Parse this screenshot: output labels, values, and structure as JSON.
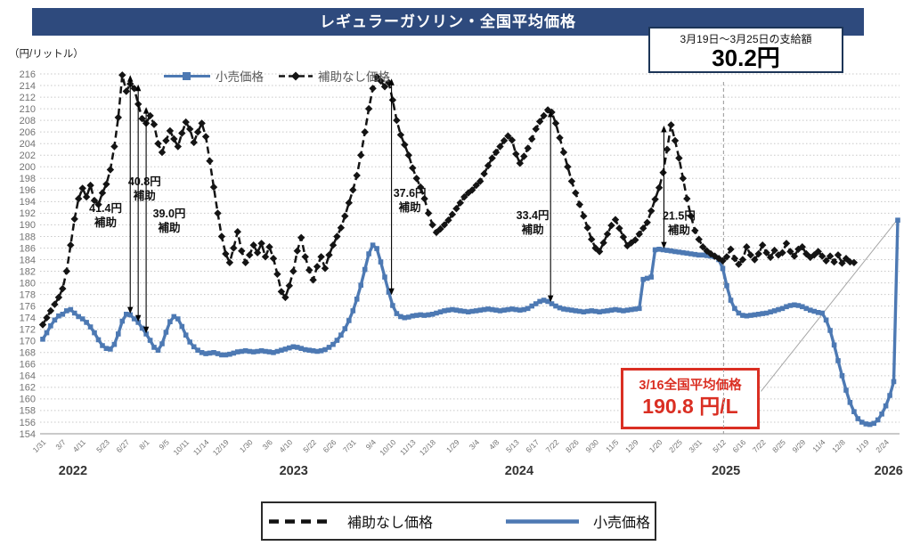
{
  "title": "レギュラーガソリン・全国平均価格",
  "unit_label": "（円/リットル）",
  "subsidy_box": {
    "line1": "3月19日～3月25日の支給額",
    "line2": "30.2円"
  },
  "price_box": {
    "line1": "3/16全国平均価格",
    "line2": "190.8 円/L"
  },
  "legend_top": {
    "retail": "小売価格",
    "unsubsidized": "補助なし価格"
  },
  "legend_bottom": {
    "unsubsidized": "補助なし価格",
    "retail": "小売価格"
  },
  "colors": {
    "navy": "#2e4a7d",
    "retail_blue": "#4d79b3",
    "unsubsidized_black": "#141414",
    "red_accent": "#da2f23",
    "grid": "#c8c8c8",
    "axis": "#ababab",
    "tick_text": "#737373",
    "gray_line": "#a6a6a6"
  },
  "chart_data": {
    "type": "line",
    "title": "レギュラーガソリン・全国平均価格",
    "ylabel": "（円/リットル）",
    "ylim": [
      154,
      216
    ],
    "y_step": 2,
    "grid": "horizontal-dotted",
    "legend_position": "top-inside",
    "x_axis": {
      "tick_labels": [
        "1/31",
        "3/7",
        "4/11",
        "5/23",
        "6/27",
        "8/1",
        "9/5",
        "10/11",
        "11/14",
        "12/19",
        "1/30",
        "3/6",
        "4/10",
        "5/22",
        "6/26",
        "7/31",
        "9/4",
        "10/10",
        "11/13",
        "12/18",
        "1/29",
        "3/4",
        "4/8",
        "5/13",
        "6/17",
        "7/22",
        "8/26",
        "9/30",
        "11/5",
        "12/9",
        "1/20",
        "2/25",
        "3/31",
        "5/12",
        "6/16",
        "7/22",
        "8/25",
        "9/29",
        "11/4",
        "12/8",
        "1/19",
        "2/24"
      ],
      "tick_weeks": [
        0,
        5,
        10,
        16,
        21,
        26,
        31,
        36,
        41,
        46,
        52,
        57,
        62,
        68,
        73,
        78,
        83,
        88,
        93,
        98,
        104,
        109,
        114,
        119,
        124,
        129,
        134,
        139,
        144,
        149,
        155,
        160,
        165,
        171,
        176,
        181,
        186,
        191,
        196,
        201,
        207,
        212
      ],
      "year_labels": [
        {
          "text": "2022",
          "week": 7.6
        },
        {
          "text": "2023",
          "week": 63.1
        },
        {
          "text": "2024",
          "week": 119.8
        },
        {
          "text": "2025",
          "week": 171.8
        },
        {
          "text": "2026",
          "week": 212.7
        }
      ]
    },
    "series": [
      {
        "name": "小売価格",
        "style": "solid",
        "marker": "square",
        "color": "#4d79b3",
        "values": [
          170.3,
          171.4,
          172.6,
          173.6,
          174.3,
          174.6,
          175.2,
          175.4,
          174.8,
          174.2,
          173.8,
          173.2,
          172.4,
          171.4,
          170.2,
          169.2,
          168.7,
          168.6,
          169.4,
          171.2,
          173.4,
          174.6,
          174.5,
          173.8,
          173.2,
          172.2,
          171.2,
          170.1,
          168.9,
          168.4,
          169.5,
          171.5,
          173.3,
          174.2,
          173.8,
          172.5,
          171,
          169.8,
          169,
          168.4,
          168,
          167.8,
          167.9,
          168,
          167.8,
          167.6,
          167.6,
          167.7,
          167.9,
          168.1,
          168.2,
          168.3,
          168.2,
          168.1,
          168.2,
          168.3,
          168.2,
          168.1,
          168,
          168.2,
          168.4,
          168.6,
          168.8,
          169,
          168.9,
          168.7,
          168.5,
          168.4,
          168.3,
          168.2,
          168.3,
          168.5,
          168.9,
          169.4,
          170.1,
          171,
          172.1,
          173.5,
          175.2,
          177.2,
          179.6,
          182.3,
          185,
          186.5,
          185.9,
          183.6,
          181,
          178.4,
          176.1,
          174.7,
          174.2,
          174,
          174.1,
          174.3,
          174.4,
          174.5,
          174.4,
          174.5,
          174.6,
          174.8,
          175,
          175.2,
          175.3,
          175.4,
          175.3,
          175.2,
          175.1,
          175,
          175.1,
          175.2,
          175.3,
          175.4,
          175.5,
          175.4,
          175.3,
          175.2,
          175.3,
          175.4,
          175.5,
          175.4,
          175.3,
          175.4,
          175.6,
          176,
          176.4,
          176.8,
          177,
          176.8,
          176.4,
          176,
          175.7,
          175.5,
          175.4,
          175.3,
          175.2,
          175.1,
          175,
          175.1,
          175.2,
          175.1,
          175,
          175.1,
          175.2,
          175.3,
          175.4,
          175.3,
          175.2,
          175.3,
          175.4,
          175.5,
          175.6,
          180.6,
          180.8,
          181,
          185.7,
          185.8,
          185.7,
          185.6,
          185.5,
          185.4,
          185.3,
          185.2,
          185.1,
          185,
          184.9,
          184.8,
          184.8,
          184.7,
          184.6,
          184.5,
          184,
          182.5,
          179.5,
          177,
          175.6,
          174.8,
          174.4,
          174.3,
          174.4,
          174.5,
          174.6,
          174.7,
          174.8,
          175,
          175.2,
          175.4,
          175.6,
          175.9,
          176.1,
          176.2,
          176.1,
          175.9,
          175.6,
          175.3,
          175.1,
          174.9,
          174.8,
          173.6,
          171.8,
          169.3,
          166.6,
          164,
          161.5,
          159.4,
          157.8,
          156.6,
          156,
          155.7,
          155.6,
          155.8,
          156.4,
          157.4,
          158.8,
          160.6,
          163,
          190.8
        ]
      },
      {
        "name": "補助なし価格",
        "style": "dashed",
        "marker": "diamond",
        "color": "#141414",
        "values": [
          172.8,
          174,
          175.2,
          176.3,
          177.5,
          179,
          182,
          186.5,
          191,
          194.5,
          196.3,
          194.8,
          196.8,
          194.2,
          193.5,
          195.5,
          197,
          199.5,
          203.5,
          208.5,
          215.8,
          213,
          214.3,
          213.5,
          210.8,
          208.3,
          207.5,
          208.8,
          207.3,
          204,
          202.5,
          204.5,
          206.2,
          204.8,
          203.5,
          205.8,
          207.7,
          206.5,
          204.2,
          206,
          207.5,
          205.2,
          201,
          196.5,
          192,
          188,
          185,
          183.5,
          186,
          188.8,
          185.5,
          183.5,
          184.8,
          186.5,
          185.2,
          186.8,
          184.5,
          186.2,
          184.2,
          181.5,
          178.5,
          177.5,
          179.5,
          182,
          185.5,
          187.8,
          184.5,
          182.2,
          180.5,
          182.8,
          184.5,
          182.5,
          184.8,
          186.5,
          188,
          189.5,
          191.5,
          193.8,
          196,
          198.5,
          202,
          206,
          210,
          213.5,
          215.5,
          214.8,
          213.8,
          214.5,
          211.5,
          208,
          205.5,
          203.8,
          202,
          199.8,
          198,
          196.5,
          194.5,
          192,
          190,
          188.7,
          189.3,
          190,
          190.8,
          191.8,
          192.8,
          193.8,
          194.8,
          195.5,
          196,
          196.8,
          197.5,
          198.8,
          200.2,
          201.5,
          202.5,
          203.5,
          204.5,
          205.3,
          204.6,
          202.2,
          200.6,
          201.8,
          203.2,
          204.8,
          206.5,
          207.8,
          208.8,
          209.8,
          209.4,
          207.5,
          205,
          202.5,
          200,
          197.5,
          195.5,
          193.5,
          191.5,
          189.5,
          187.5,
          186,
          185.4,
          186.9,
          188.4,
          189.9,
          190.9,
          189.4,
          187.9,
          186.4,
          186.9,
          187.4,
          188.4,
          189.4,
          190.4,
          192.4,
          194.4,
          196.4,
          199,
          203,
          207.2,
          204.5,
          201.5,
          198,
          194.5,
          191.5,
          189,
          187.5,
          186.2,
          185.5,
          185,
          184.6,
          184.2,
          183.8,
          184.5,
          185.8,
          184.2,
          183.2,
          184,
          186.2,
          184.8,
          184,
          185,
          186.5,
          185.2,
          184.4,
          185.6,
          184.8,
          185.2,
          186.8,
          185.4,
          184.6,
          185.8,
          186.2,
          185,
          184.4,
          184.8,
          185.4,
          184.6,
          183.8,
          184.6,
          183.6,
          184.8,
          183.4,
          184.2,
          183.6,
          183.5
        ]
      }
    ],
    "annotations": [
      {
        "line1": "41.4円",
        "line2": "補助",
        "arrow_week": 22,
        "arrow_top": 215.8,
        "arrow_bottom": 174.7,
        "label_week": 15.8,
        "label_value": 191.2
      },
      {
        "line1": "40.8円",
        "line2": "補助",
        "arrow_week": 24,
        "arrow_top": 214.2,
        "arrow_bottom": 173.3,
        "label_week": 25.6,
        "label_value": 195.8
      },
      {
        "line1": "39.0円",
        "line2": "補助",
        "arrow_week": 26,
        "arrow_top": 210.3,
        "arrow_bottom": 171.3,
        "label_week": 31.8,
        "label_value": 190.3
      },
      {
        "line1": "37.6円",
        "line2": "補助",
        "arrow_week": 87.7,
        "arrow_top": 215.2,
        "arrow_bottom": 177.9,
        "label_week": 92.3,
        "label_value": 193.8
      },
      {
        "line1": "33.4円",
        "line2": "補助",
        "arrow_week": 127.7,
        "arrow_top": 209.7,
        "arrow_bottom": 176.7,
        "label_week": 123.2,
        "label_value": 190.0
      },
      {
        "line1": "21.5円",
        "line2": "補助",
        "arrow_week": 156.2,
        "arrow_top": 207.1,
        "arrow_bottom": 185.9,
        "label_week": 160.0,
        "label_value": 189.9
      }
    ],
    "vline_week": 171.2,
    "callout_line": {
      "from_week": 180.6,
      "from_value": 161.3,
      "to_week": 214.8,
      "to_value": 190.8
    }
  }
}
